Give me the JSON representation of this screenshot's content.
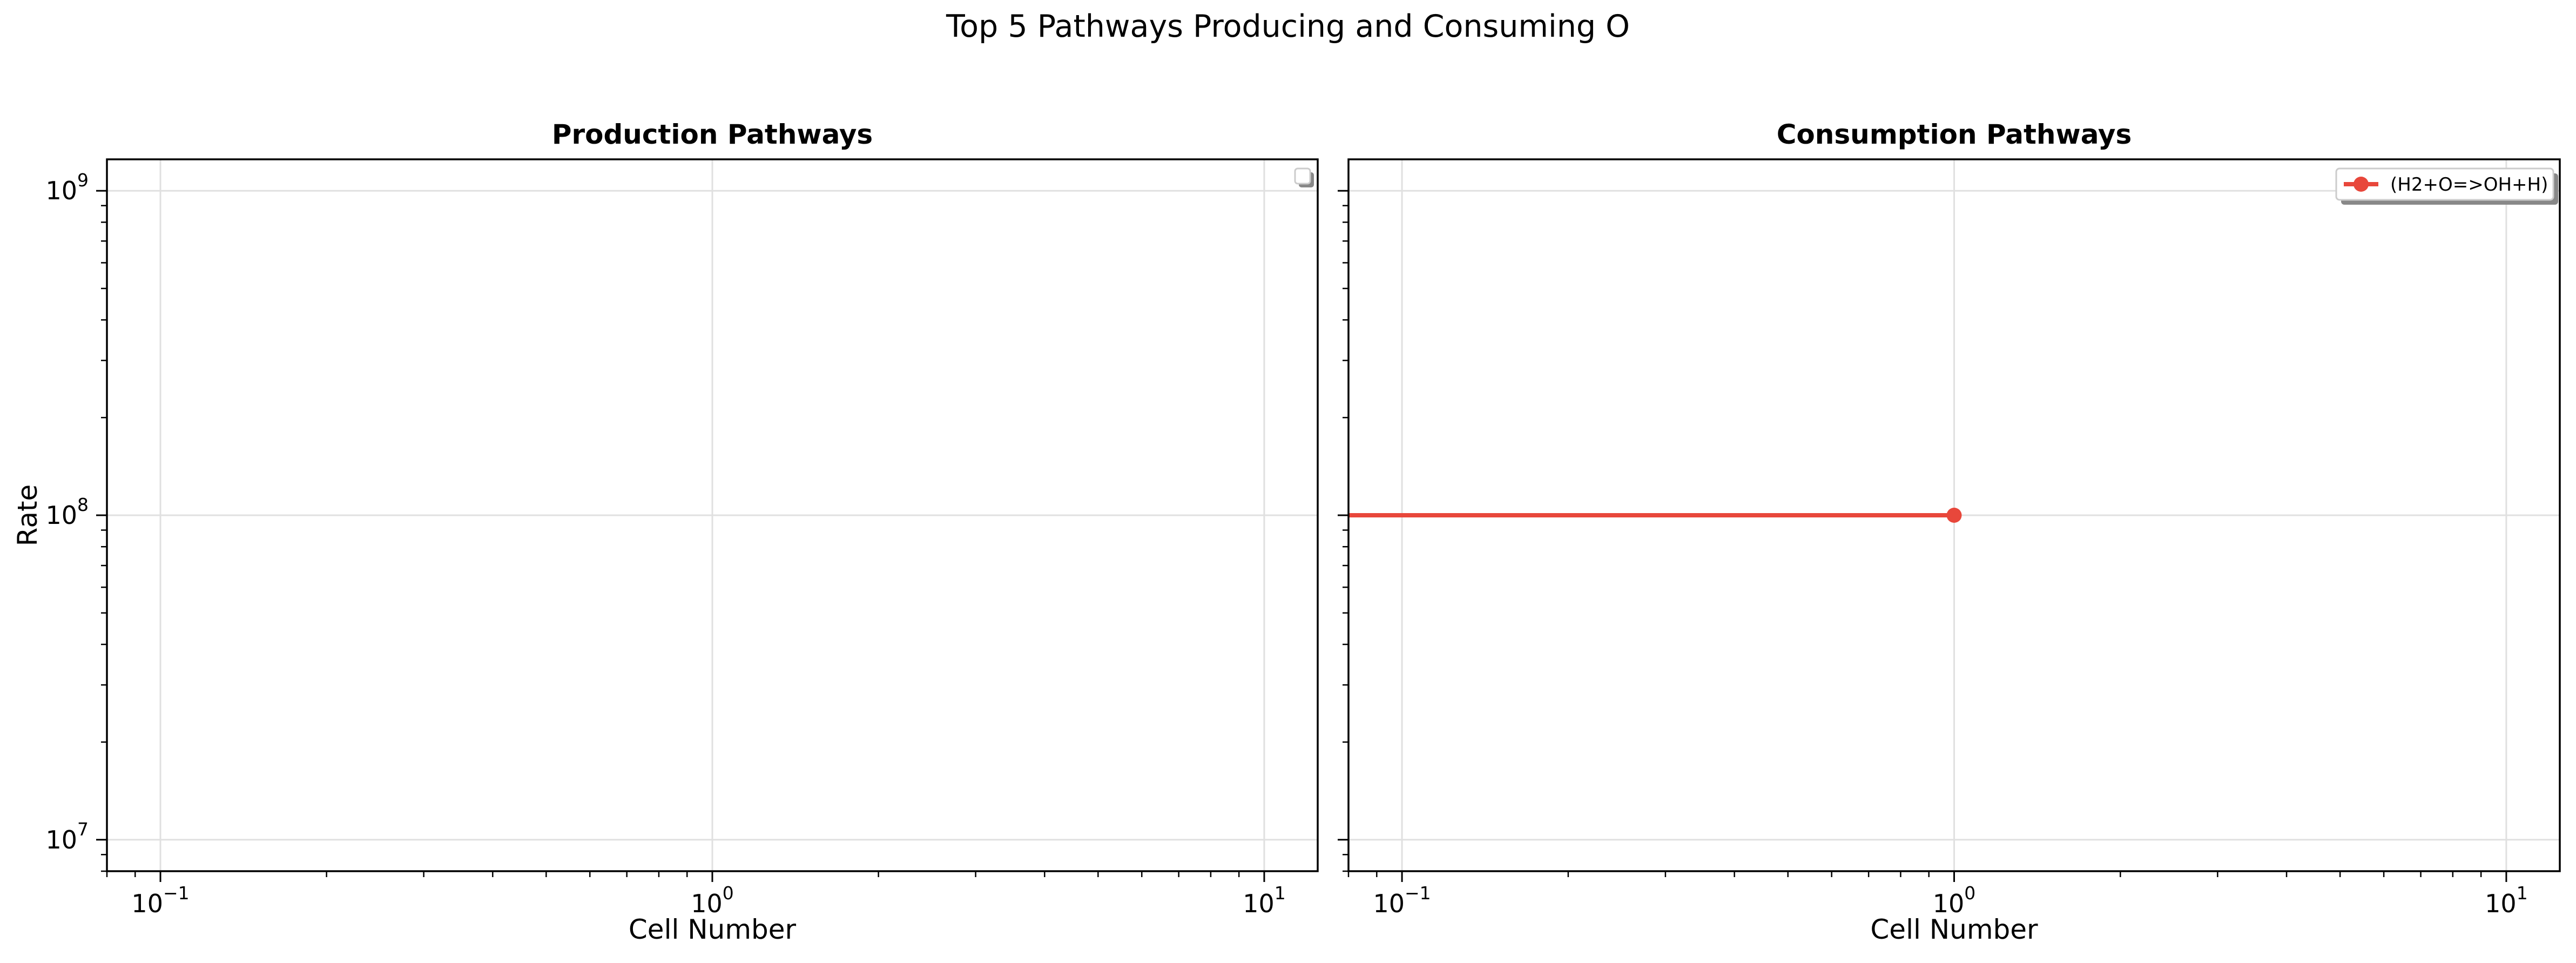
{
  "figure": {
    "title": "Top 5 Pathways Producing and Consuming O"
  },
  "colors": {
    "series_line": "#e8473b",
    "grid": "#e0e0e0",
    "axes": "#000000",
    "legend_border": "#cccccc",
    "legend_shadow": "#888888"
  },
  "chart_data": [
    {
      "type": "line",
      "title": "Production Pathways",
      "xlabel": "Cell Number",
      "ylabel": "Rate",
      "xscale": "log",
      "yscale": "log",
      "xlim": [
        0.08,
        12.5
      ],
      "ylim": [
        8000000,
        1250000000
      ],
      "x_ticks": [
        0.1,
        1,
        10
      ],
      "y_ticks": [
        10000000,
        100000000,
        1000000000
      ],
      "x_tick_labels": [
        {
          "base": "10",
          "exp": "−1"
        },
        {
          "base": "10",
          "exp": "0"
        },
        {
          "base": "10",
          "exp": "1"
        }
      ],
      "y_tick_labels": [
        {
          "base": "10",
          "exp": "7"
        },
        {
          "base": "10",
          "exp": "8"
        },
        {
          "base": "10",
          "exp": "9"
        }
      ],
      "grid": true,
      "legend": "upper-right",
      "series": []
    },
    {
      "type": "line",
      "title": "Consumption Pathways",
      "xlabel": "Cell Number",
      "ylabel": "",
      "xscale": "log",
      "yscale": "log",
      "xlim": [
        0.08,
        12.5
      ],
      "ylim": [
        8000000,
        1250000000
      ],
      "x_ticks": [
        0.1,
        1,
        10
      ],
      "y_ticks": [
        10000000,
        100000000,
        1000000000
      ],
      "x_tick_labels": [
        {
          "base": "10",
          "exp": "−1"
        },
        {
          "base": "10",
          "exp": "0"
        },
        {
          "base": "10",
          "exp": "1"
        }
      ],
      "y_tick_labels": [],
      "grid": true,
      "legend": "upper-right",
      "series": [
        {
          "name": "(H2+O=>OH+H)",
          "color": "#e8473b",
          "marker": "circle",
          "x": [
            0,
            1
          ],
          "y": [
            100000000,
            100000000
          ]
        }
      ]
    }
  ]
}
